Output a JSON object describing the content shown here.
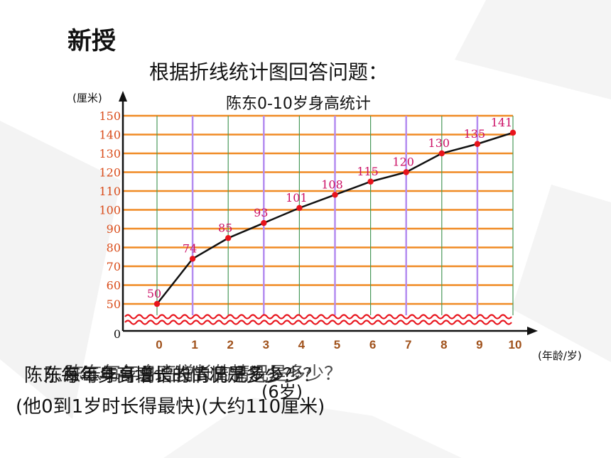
{
  "heading": "新授",
  "subheading": "根据折线统计图回答问题：",
  "colors": {
    "gridline": "#f08a24",
    "vertical_main": "#b48cf0",
    "vertical_minor": "#4a9a5a",
    "line": "#111111",
    "point": "#e8141c",
    "point_label": "#cc1166",
    "tick_label_x": "#a0521c",
    "tick_label_y": "#d94c1a",
    "break_mark": "#e8141c"
  },
  "chart_data": {
    "type": "line",
    "title": "陈东0-10岁身高统计",
    "xlabel": "(年龄/岁)",
    "ylabel": "(厘米)",
    "x": [
      0,
      1,
      2,
      3,
      4,
      5,
      6,
      7,
      8,
      9,
      10
    ],
    "series": [
      {
        "values": [
          50,
          74,
          85,
          93,
          101,
          108,
          115,
          120,
          130,
          135,
          141
        ]
      }
    ],
    "y_ticks": [
      0,
      50,
      60,
      70,
      80,
      90,
      100,
      110,
      120,
      130,
      140,
      150
    ],
    "y_tick_labels": [
      "0",
      "50",
      "60",
      "70",
      "80",
      "90",
      "100",
      "110",
      "120",
      "130",
      "140",
      "150"
    ],
    "x_tick_labels": [
      "0",
      "1",
      "2",
      "3",
      "4",
      "5",
      "6",
      "7",
      "8",
      "9",
      "10"
    ],
    "ylim": [
      50,
      150
    ],
    "axis_break": true,
    "grid": true
  },
  "questions": {
    "overlapped_line": "陈东每年身高增长的情况是多少？",
    "overlap_fragment": "(6岁)",
    "answers": "(他0到1岁时长得最快)(大约110厘米)"
  }
}
